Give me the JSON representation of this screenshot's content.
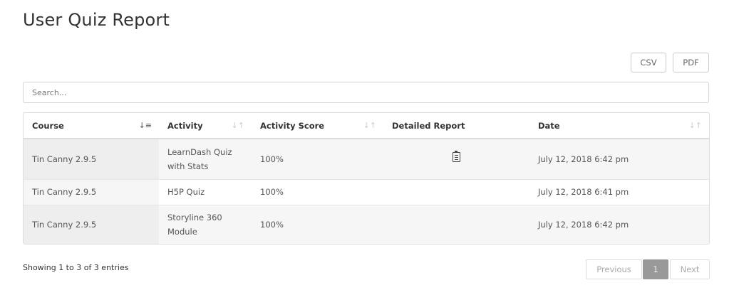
{
  "title": "User Quiz Report",
  "toolbar": {
    "csv": "CSV",
    "pdf": "PDF"
  },
  "search": {
    "placeholder": "Search...",
    "value": ""
  },
  "table": {
    "columns": [
      {
        "label": "Course",
        "sort": "active-ascending"
      },
      {
        "label": "Activity",
        "sort": "sortable"
      },
      {
        "label": "Activity Score",
        "sort": "sortable"
      },
      {
        "label": "Detailed Report",
        "sort": "none"
      },
      {
        "label": "Date",
        "sort": "sortable"
      }
    ],
    "rows": [
      {
        "course": "Tin Canny 2.9.5",
        "activity": "LearnDash Quiz with Stats",
        "score": "100%",
        "report_icon": "clipboard-list-icon",
        "date": "July 12, 2018 6:42 pm"
      },
      {
        "course": "Tin Canny 2.9.5",
        "activity": "H5P Quiz",
        "score": "100%",
        "report_icon": "",
        "date": "July 12, 2018 6:41 pm"
      },
      {
        "course": "Tin Canny 2.9.5",
        "activity": "Storyline 360 Module",
        "score": "100%",
        "report_icon": "",
        "date": "July 12, 2018 6:42 pm"
      }
    ]
  },
  "footer": {
    "info": "Showing 1 to 3 of 3 entries",
    "previous": "Previous",
    "current_page": "1",
    "next": "Next"
  }
}
